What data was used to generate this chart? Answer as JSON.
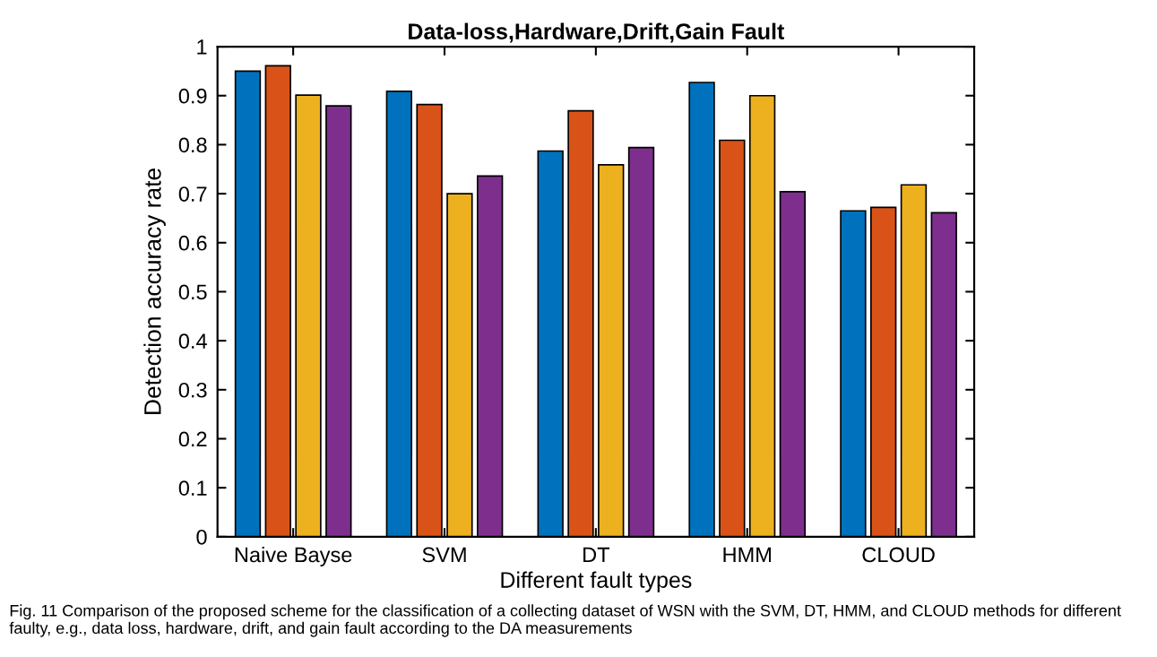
{
  "chart_data": {
    "type": "bar",
    "title": "Data-loss,Hardware,Drift,Gain Fault",
    "xlabel": "Different fault types",
    "ylabel": "Detection accuracy rate",
    "categories": [
      "Naive Bayse",
      "SVM",
      "DT",
      "HMM",
      "CLOUD"
    ],
    "series": [
      {
        "color": "#0072bd",
        "values": [
          0.95,
          0.909,
          0.787,
          0.927,
          0.665
        ]
      },
      {
        "color": "#d95319",
        "values": [
          0.961,
          0.882,
          0.869,
          0.809,
          0.672
        ]
      },
      {
        "color": "#edb120",
        "values": [
          0.901,
          0.7,
          0.759,
          0.9,
          0.718
        ]
      },
      {
        "color": "#7e2f8e",
        "values": [
          0.879,
          0.736,
          0.794,
          0.704,
          0.661
        ]
      }
    ],
    "ylim": [
      0,
      1
    ],
    "yticks": [
      0,
      0.1,
      0.2,
      0.3,
      0.4,
      0.5,
      0.6,
      0.7,
      0.8,
      0.9,
      1
    ],
    "grid": false,
    "legend": false,
    "annotations": [
      "Fig. 11 Comparison of the proposed scheme for the classification of a collecting dataset of WSN with the SVM, DT, HMM, and CLOUD methods for different faulty, e.g., data loss, hardware, drift, and gain fault according to the DA measurements"
    ]
  }
}
